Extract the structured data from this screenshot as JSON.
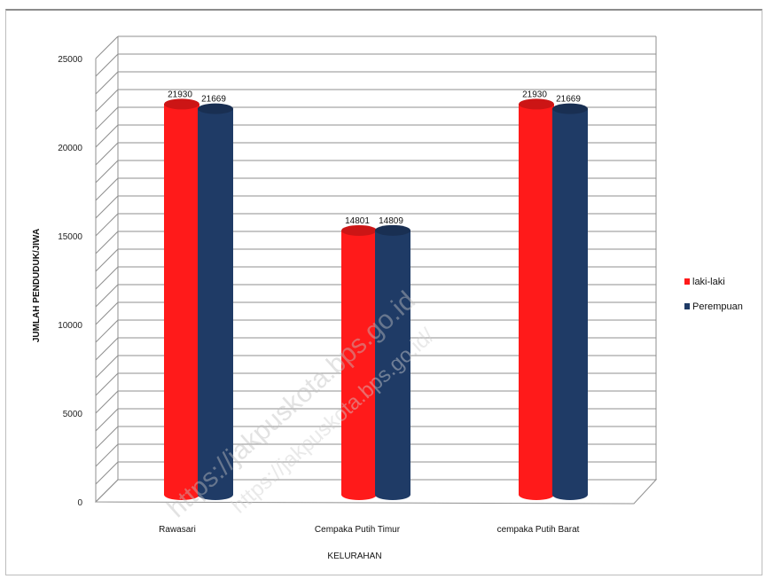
{
  "chart_data": {
    "type": "bar",
    "title": "",
    "xlabel": "KELURAHAN",
    "ylabel": "JUMLAH PENDUDUK/JIWA",
    "categories": [
      "Rawasari",
      "Cempaka Putih Timur",
      "cempaka Putih Barat"
    ],
    "series": [
      {
        "name": "laki-laki",
        "color": "#ff1a1a",
        "values": [
          21930,
          14801,
          21930
        ],
        "labels": [
          "21930",
          "14801",
          "21930"
        ]
      },
      {
        "name": "Perempuan",
        "color": "#1f3b66",
        "values": [
          21669,
          14809,
          21669
        ],
        "labels": [
          "21669",
          "14809",
          "21669"
        ]
      }
    ],
    "ylim": [
      0,
      25000
    ],
    "yticks": [
      "0",
      "5000",
      "10000",
      "15000",
      "20000",
      "25000"
    ],
    "grid": true,
    "legend_position": "right"
  },
  "watermark": {
    "text_1": "https://jakpuskota.bps.go.id",
    "text_2": "https://jakpuskota.bps.go.id/"
  }
}
